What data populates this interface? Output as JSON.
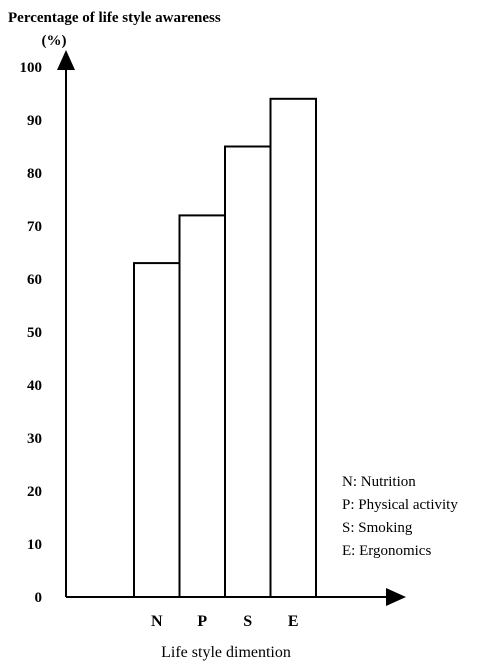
{
  "chart_data": {
    "type": "bar",
    "ylabel": "Percentage of life style awareness",
    "ylabel_unit": "(%)",
    "xlabel": "Life style dimention",
    "categories": [
      "N",
      "P",
      "S",
      "E"
    ],
    "values": [
      63,
      72,
      85,
      94
    ],
    "ylim": [
      0,
      100
    ],
    "yticks": [
      0,
      10,
      20,
      30,
      40,
      50,
      60,
      70,
      80,
      90,
      100
    ],
    "grid": false,
    "bar_fill": "#ffffff",
    "bar_stroke": "#000000",
    "legend": [
      "N: Nutrition",
      "P: Physical activity",
      "S: Smoking",
      "E: Ergonomics"
    ],
    "legend_position": "right"
  }
}
